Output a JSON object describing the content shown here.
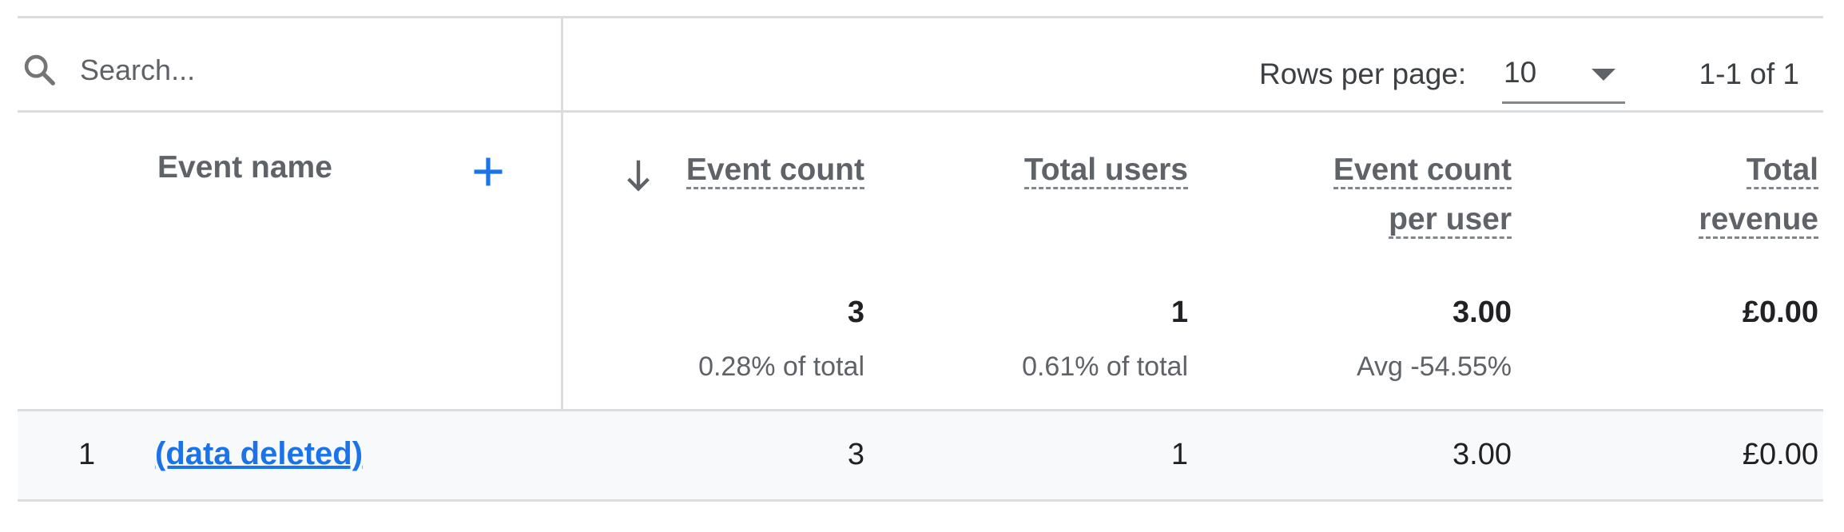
{
  "search": {
    "placeholder": "Search..."
  },
  "pagination": {
    "rows_per_page_label": "Rows per page:",
    "rows_per_page_value": "10",
    "range_label": "1-1 of 1"
  },
  "table": {
    "dimension_header": "Event name",
    "columns": [
      {
        "label_line1": "Event count",
        "label_line2": "",
        "sorted": "descending"
      },
      {
        "label_line1": "Total users",
        "label_line2": ""
      },
      {
        "label_line1": "Event count",
        "label_line2": "per user"
      },
      {
        "label_line1": "Total",
        "label_line2": "revenue"
      }
    ],
    "totals": [
      {
        "value": "3",
        "sub": "0.28% of total"
      },
      {
        "value": "1",
        "sub": "0.61% of total"
      },
      {
        "value": "3.00",
        "sub": "Avg -54.55%"
      },
      {
        "value": "£0.00",
        "sub": ""
      }
    ],
    "rows": [
      {
        "index": "1",
        "event_name": "(data deleted)",
        "values": [
          "3",
          "1",
          "3.00",
          "£0.00"
        ]
      }
    ]
  },
  "colors": {
    "link": "#1a73e8",
    "accent": "#1a73e8",
    "divider": "#dadce0",
    "row_background": "#f8f9fa"
  },
  "icons": {
    "search": "search-icon",
    "add": "plus-icon",
    "sort": "arrow-down-icon",
    "dropdown": "triangle-down-icon"
  }
}
